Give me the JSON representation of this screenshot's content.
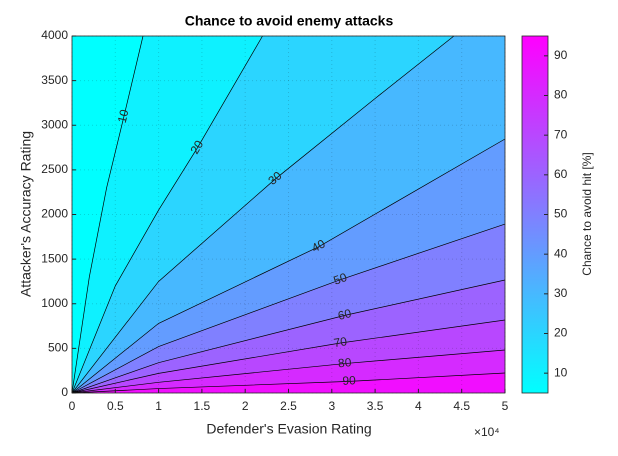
{
  "chart_data": {
    "type": "contourf",
    "title": "Chance to avoid enemy attacks",
    "x_label": "Defender's Evasion Rating",
    "y_label": "Attacker's Accuracy Rating",
    "x_multiplier": "×10⁴",
    "colorbar_label": "Chance to avoid hit [%]",
    "colormap": "cool",
    "clim": [
      5,
      95
    ],
    "colorbar_ticks": [
      10,
      20,
      30,
      40,
      50,
      60,
      70,
      80,
      90
    ],
    "xlim": [
      0,
      50000
    ],
    "ylim": [
      0,
      4000
    ],
    "xticks": [
      0,
      {
        "value": 5000,
        "label": "0.5"
      },
      {
        "value": 10000,
        "label": "1"
      },
      {
        "value": 15000,
        "label": "1.5"
      },
      {
        "value": 20000,
        "label": "2"
      },
      {
        "value": 25000,
        "label": "2.5"
      },
      {
        "value": 30000,
        "label": "3"
      },
      {
        "value": 35000,
        "label": "3.5"
      },
      {
        "value": 40000,
        "label": "4"
      },
      {
        "value": 45000,
        "label": "4.5"
      },
      {
        "value": 50000,
        "label": "5"
      }
    ],
    "yticks": [
      0,
      500,
      1000,
      1500,
      2000,
      2500,
      3000,
      3500,
      4000
    ],
    "grid": true,
    "contours": [
      {
        "level": 10,
        "x": [
          0,
          2000,
          4000,
          6000,
          8200
        ],
        "y": [
          0,
          1300,
          2300,
          3100,
          4000
        ]
      },
      {
        "level": 20,
        "x": [
          0,
          5000,
          10000,
          14500,
          22000
        ],
        "y": [
          0,
          1200,
          2050,
          2750,
          4000
        ]
      },
      {
        "level": 30,
        "x": [
          0,
          10000,
          23500,
          35000,
          44100
        ],
        "y": [
          0,
          1250,
          2400,
          3300,
          4000
        ]
      },
      {
        "level": 40,
        "x": [
          0,
          10000,
          28500,
          50000
        ],
        "y": [
          0,
          780,
          1640,
          2846
        ]
      },
      {
        "level": 50,
        "x": [
          0,
          10000,
          31000,
          50000
        ],
        "y": [
          0,
          520,
          1270,
          1893
        ]
      },
      {
        "level": 60,
        "x": [
          0,
          10000,
          31500,
          50000
        ],
        "y": [
          0,
          340,
          870,
          1266
        ]
      },
      {
        "level": 70,
        "x": [
          0,
          10000,
          31000,
          50000
        ],
        "y": [
          0,
          220,
          560,
          818
        ]
      },
      {
        "level": 80,
        "x": [
          0,
          10000,
          31500,
          50000
        ],
        "y": [
          0,
          120,
          330,
          482
        ]
      },
      {
        "level": 90,
        "x": [
          0,
          10000,
          32000,
          50000
        ],
        "y": [
          0,
          50,
          130,
          224
        ]
      }
    ]
  }
}
